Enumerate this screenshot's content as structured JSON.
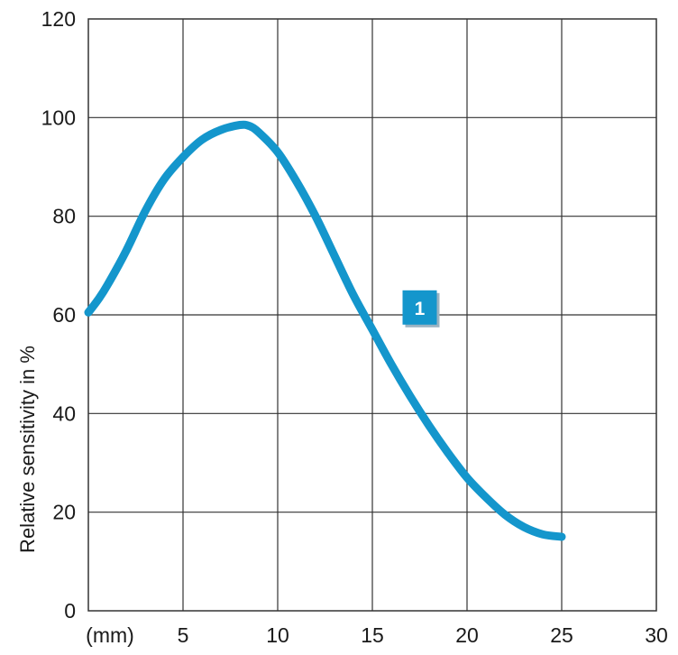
{
  "chart_data": {
    "type": "line",
    "x_unit_label": "(mm)",
    "xlim": [
      0,
      30
    ],
    "ylim": [
      0,
      120
    ],
    "x_ticks": [
      5,
      10,
      15,
      20,
      25,
      30
    ],
    "y_ticks": [
      0,
      20,
      40,
      60,
      80,
      100,
      120
    ],
    "ylabel": "Relative sensitivity in %",
    "grid": true,
    "series": [
      {
        "color": "#1496cc",
        "label": "1",
        "x": [
          0,
          0.5,
          1,
          2,
          3,
          4,
          5,
          6,
          7,
          8,
          8.5,
          9,
          10,
          11,
          12,
          13,
          14,
          15,
          16,
          17,
          18,
          19,
          20,
          21,
          22,
          23,
          24,
          25
        ],
        "y": [
          60.5,
          63,
          66,
          73,
          81,
          87.5,
          92,
          95.5,
          97.5,
          98.5,
          98.3,
          97,
          93,
          87,
          80,
          72,
          64,
          57,
          50,
          43.5,
          37.5,
          32,
          27,
          23,
          19.5,
          17,
          15.5,
          15
        ]
      }
    ],
    "annotation": {
      "text": "1",
      "x": 17.5,
      "y": 61.5
    }
  }
}
